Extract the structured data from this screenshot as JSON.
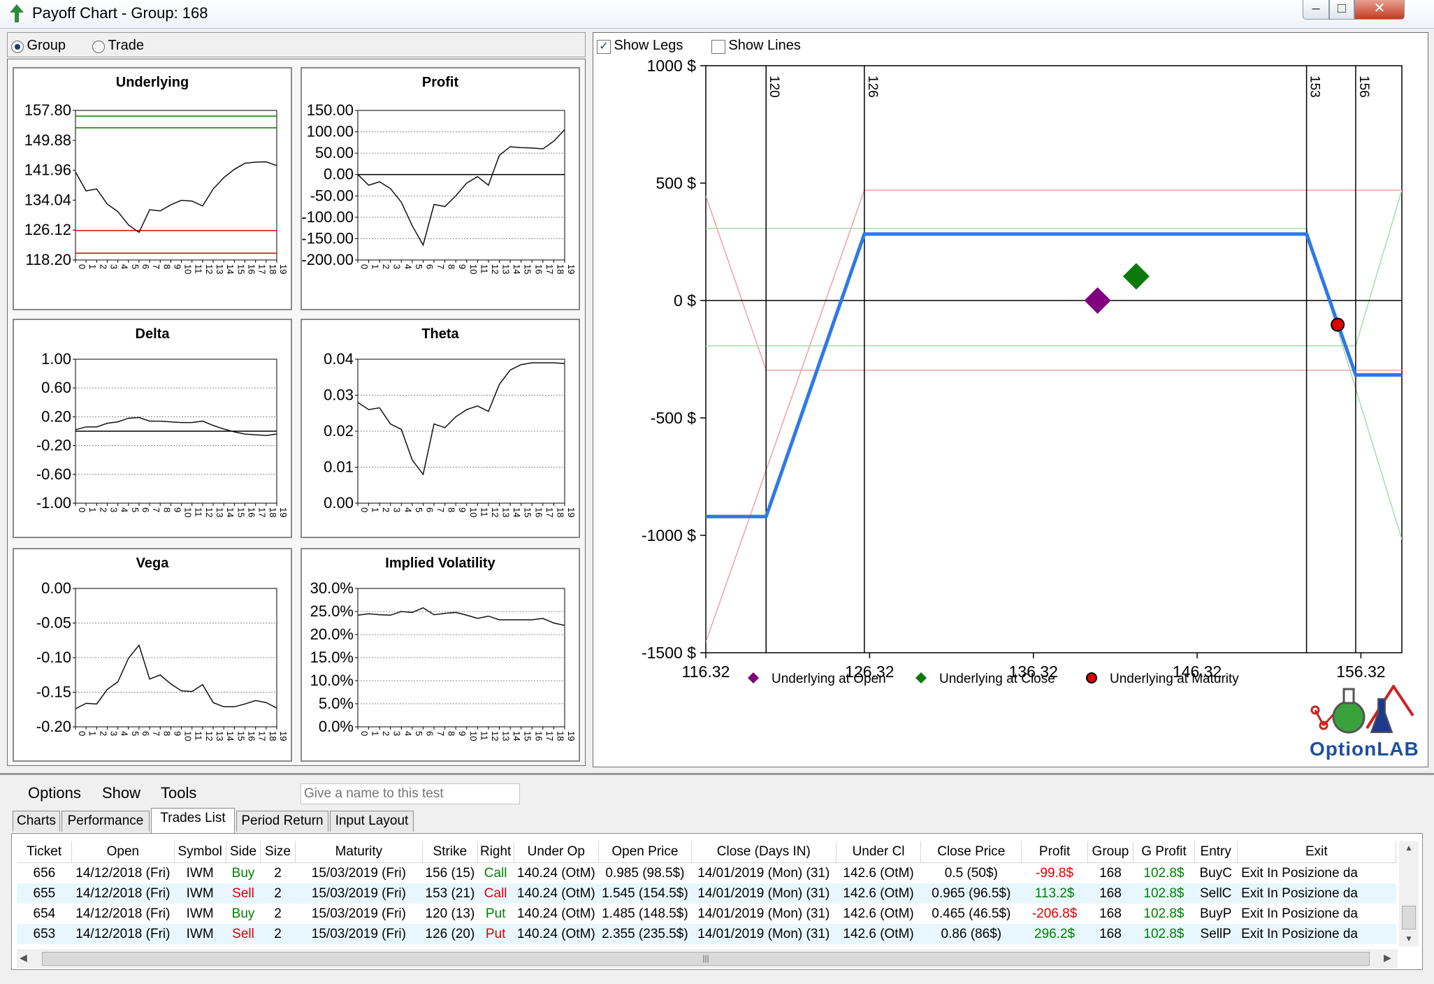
{
  "window": {
    "title": "Payoff Chart - Group: 168",
    "min_icon": "minimize-icon",
    "max_icon": "maximize-icon",
    "close_icon": "close-icon",
    "app_icon": "green-arrow-icon"
  },
  "mode": {
    "group_label": "Group",
    "trade_label": "Trade",
    "selected": "Group"
  },
  "options": {
    "show_legs_label": "Show Legs",
    "show_legs_checked": true,
    "show_lines_label": "Show Lines",
    "show_lines_checked": false
  },
  "mini_charts": [
    {
      "type": "line",
      "title": "Underlying",
      "y_ticks": [
        "157.80",
        "149.88",
        "141.96",
        "134.04",
        "126.12",
        "118.20"
      ],
      "ylim": [
        118.2,
        157.8
      ],
      "values": [
        141.5,
        136.5,
        137,
        133,
        131,
        127.5,
        125.5,
        131.5,
        131.2,
        132.8,
        134,
        133.8,
        132.5,
        137,
        140,
        142.2,
        143.8,
        144.1,
        144.2,
        143.2
      ],
      "hlines": [
        {
          "value": 156.3,
          "color": "#008000"
        },
        {
          "value": 153.2,
          "color": "#008000"
        },
        {
          "value": 126.0,
          "color": "#dd0000"
        },
        {
          "value": 120.0,
          "color": "#dd0000"
        }
      ],
      "grid": false
    },
    {
      "type": "line",
      "title": "Profit",
      "y_ticks": [
        "150.00",
        "100.00",
        "50.00",
        "0.00",
        "-50.00",
        "-100.00",
        "-150.00",
        "-200.00"
      ],
      "ylim": [
        -200,
        150
      ],
      "values": [
        0,
        -25,
        -17,
        -33,
        -65,
        -120,
        -165,
        -70,
        -75,
        -50,
        -20,
        -5,
        -25,
        45,
        65,
        63,
        62,
        60,
        78,
        105
      ],
      "hlines": [
        {
          "value": 0,
          "color": "#000000"
        }
      ],
      "grid": true
    },
    {
      "type": "line",
      "title": "Delta",
      "y_ticks": [
        "1.00",
        "0.60",
        "0.20",
        "-0.20",
        "-0.60",
        "-1.00"
      ],
      "ylim": [
        -1,
        1
      ],
      "values": [
        0.02,
        0.06,
        0.06,
        0.11,
        0.13,
        0.18,
        0.19,
        0.14,
        0.14,
        0.13,
        0.12,
        0.12,
        0.14,
        0.08,
        0.03,
        -0.01,
        -0.04,
        -0.05,
        -0.06,
        -0.04
      ],
      "hlines": [
        {
          "value": 0,
          "color": "#000000"
        }
      ],
      "grid": true
    },
    {
      "type": "line",
      "title": "Theta",
      "y_ticks": [
        "0.04",
        "0.03",
        "0.02",
        "0.01",
        "0.00"
      ],
      "ylim": [
        0,
        0.04
      ],
      "values": [
        0.028,
        0.026,
        0.0265,
        0.022,
        0.0205,
        0.012,
        0.008,
        0.022,
        0.021,
        0.024,
        0.026,
        0.027,
        0.0255,
        0.033,
        0.037,
        0.0385,
        0.039,
        0.039,
        0.039,
        0.0388
      ],
      "hlines": [],
      "grid": true
    },
    {
      "type": "line",
      "title": "Vega",
      "y_ticks": [
        "0.00",
        "-0.05",
        "-0.10",
        "-0.15",
        "-0.20"
      ],
      "ylim": [
        -0.2,
        0
      ],
      "values": [
        -0.174,
        -0.166,
        -0.167,
        -0.146,
        -0.135,
        -0.101,
        -0.082,
        -0.131,
        -0.125,
        -0.138,
        -0.148,
        -0.149,
        -0.139,
        -0.165,
        -0.171,
        -0.171,
        -0.167,
        -0.162,
        -0.165,
        -0.173
      ],
      "hlines": [],
      "grid": true
    },
    {
      "type": "line",
      "title": "Implied Volatility",
      "y_ticks": [
        "30.0%",
        "25.0%",
        "20.0%",
        "15.0%",
        "10.0%",
        "5.0%",
        "0.0%"
      ],
      "ylim": [
        0,
        30
      ],
      "values": [
        24.2,
        24.5,
        24.3,
        24.2,
        25,
        24.8,
        25.8,
        24.3,
        24.6,
        24.8,
        24.2,
        23.5,
        24,
        23.2,
        23.2,
        23.2,
        23.2,
        23.5,
        22.5,
        22.0
      ],
      "hlines": [],
      "grid": true
    }
  ],
  "mini_x_ticks": [
    "0",
    "1",
    "2",
    "3",
    "4",
    "5",
    "6",
    "7",
    "8",
    "9",
    "10",
    "11",
    "12",
    "13",
    "14",
    "15",
    "16",
    "17",
    "18",
    "19"
  ],
  "chart_data": {
    "type": "line",
    "title": "",
    "xlim": [
      116.32,
      158.82
    ],
    "ylim": [
      -1500,
      1000
    ],
    "x_ticks": [
      "116.32",
      "126.32",
      "136.32",
      "146.32",
      "156.32"
    ],
    "y_ticks": [
      "1000 $",
      "500 $",
      "0 $",
      "-500 $",
      "-1000 $",
      "-1500 $"
    ],
    "grid": false,
    "strike_lines": [
      {
        "x": 120,
        "label": "120"
      },
      {
        "x": 126,
        "label": "126"
      },
      {
        "x": 153,
        "label": "153"
      },
      {
        "x": 156,
        "label": "156"
      }
    ],
    "series": [
      {
        "color": "#2e78e8",
        "x": [
          116.32,
          120,
          126,
          153,
          156,
          158.82
        ],
        "y": [
          -920,
          -920,
          283,
          283,
          -317,
          -317
        ]
      },
      {
        "color": "#f2a0a0",
        "x": [
          116.32,
          120,
          158.82
        ],
        "y": [
          445,
          -297,
          -297
        ]
      },
      {
        "color": "#f2a0a0",
        "x": [
          116.32,
          126,
          158.82
        ],
        "y": [
          -1455,
          470,
          470
        ]
      },
      {
        "color": "#a8dca8",
        "x": [
          116.32,
          153,
          158.82
        ],
        "y": [
          307,
          307,
          -1017
        ]
      },
      {
        "color": "#a8dca8",
        "x": [
          116.32,
          156,
          158.82
        ],
        "y": [
          -193,
          -193,
          470
        ]
      }
    ],
    "markers": [
      {
        "name": "Underlying at Open",
        "x": 140.24,
        "y": 0,
        "shape": "diamond",
        "color": "#800080"
      },
      {
        "name": "Underlying at Close",
        "x": 142.6,
        "y": 103,
        "shape": "diamond",
        "color": "#0b7a0b"
      },
      {
        "name": "Underlying at Maturity",
        "x": 154.9,
        "y": -103,
        "shape": "circle",
        "color": "#dd0000"
      }
    ],
    "legend": [
      "Underlying at Open",
      "Underlying at Close",
      "Underlying at Maturity"
    ],
    "legend_position": "bottom"
  },
  "logo": {
    "text": "OptionLAB"
  },
  "menu": {
    "items": [
      "Options",
      "Show",
      "Tools"
    ],
    "test_name_placeholder": "Give a name to this test"
  },
  "tabs": {
    "items": [
      "Charts",
      "Performance",
      "Trades List",
      "Period Return",
      "Input Layout"
    ],
    "active": "Trades List"
  },
  "trades": {
    "columns": [
      "Ticket",
      "Open",
      "Symbol",
      "Side",
      "Size",
      "Maturity",
      "Strike",
      "Right",
      "Under Op",
      "Open Price",
      "Close (Days IN)",
      "Under Cl",
      "Close Price",
      "Profit",
      "Group",
      "G Profit",
      "Entry",
      "Exit"
    ],
    "rows": [
      [
        "656",
        "14/12/2018 (Fri)",
        "IWM",
        "Buy",
        "2",
        "15/03/2019 (Fri)",
        "156 (15)",
        "Call",
        "140.24 (OtM)",
        "0.985 (98.5$)",
        "14/01/2019 (Mon) (31)",
        "142.6 (OtM)",
        "0.5 (50$)",
        "-99.8$",
        "168",
        "102.8$",
        "BuyC",
        "Exit In Posizione da"
      ],
      [
        "655",
        "14/12/2018 (Fri)",
        "IWM",
        "Sell",
        "2",
        "15/03/2019 (Fri)",
        "153 (21)",
        "Call",
        "140.24 (OtM)",
        "1.545 (154.5$)",
        "14/01/2019 (Mon) (31)",
        "142.6 (OtM)",
        "0.965 (96.5$)",
        "113.2$",
        "168",
        "102.8$",
        "SellC",
        "Exit In Posizione da"
      ],
      [
        "654",
        "14/12/2018 (Fri)",
        "IWM",
        "Buy",
        "2",
        "15/03/2019 (Fri)",
        "120 (13)",
        "Put",
        "140.24 (OtM)",
        "1.485 (148.5$)",
        "14/01/2019 (Mon) (31)",
        "142.6 (OtM)",
        "0.465 (46.5$)",
        "-206.8$",
        "168",
        "102.8$",
        "BuyP",
        "Exit In Posizione da"
      ],
      [
        "653",
        "14/12/2018 (Fri)",
        "IWM",
        "Sell",
        "2",
        "15/03/2019 (Fri)",
        "126 (20)",
        "Put",
        "140.24 (OtM)",
        "2.355 (235.5$)",
        "14/01/2019 (Mon) (31)",
        "142.6 (OtM)",
        "0.86 (86$)",
        "296.2$",
        "168",
        "102.8$",
        "SellP",
        "Exit In Posizione da"
      ]
    ]
  },
  "colors": {
    "buy": "#008000",
    "sell": "#dd0000",
    "profit_pos": "#008000",
    "profit_neg": "#dd0000",
    "gprofit": "#008000"
  }
}
